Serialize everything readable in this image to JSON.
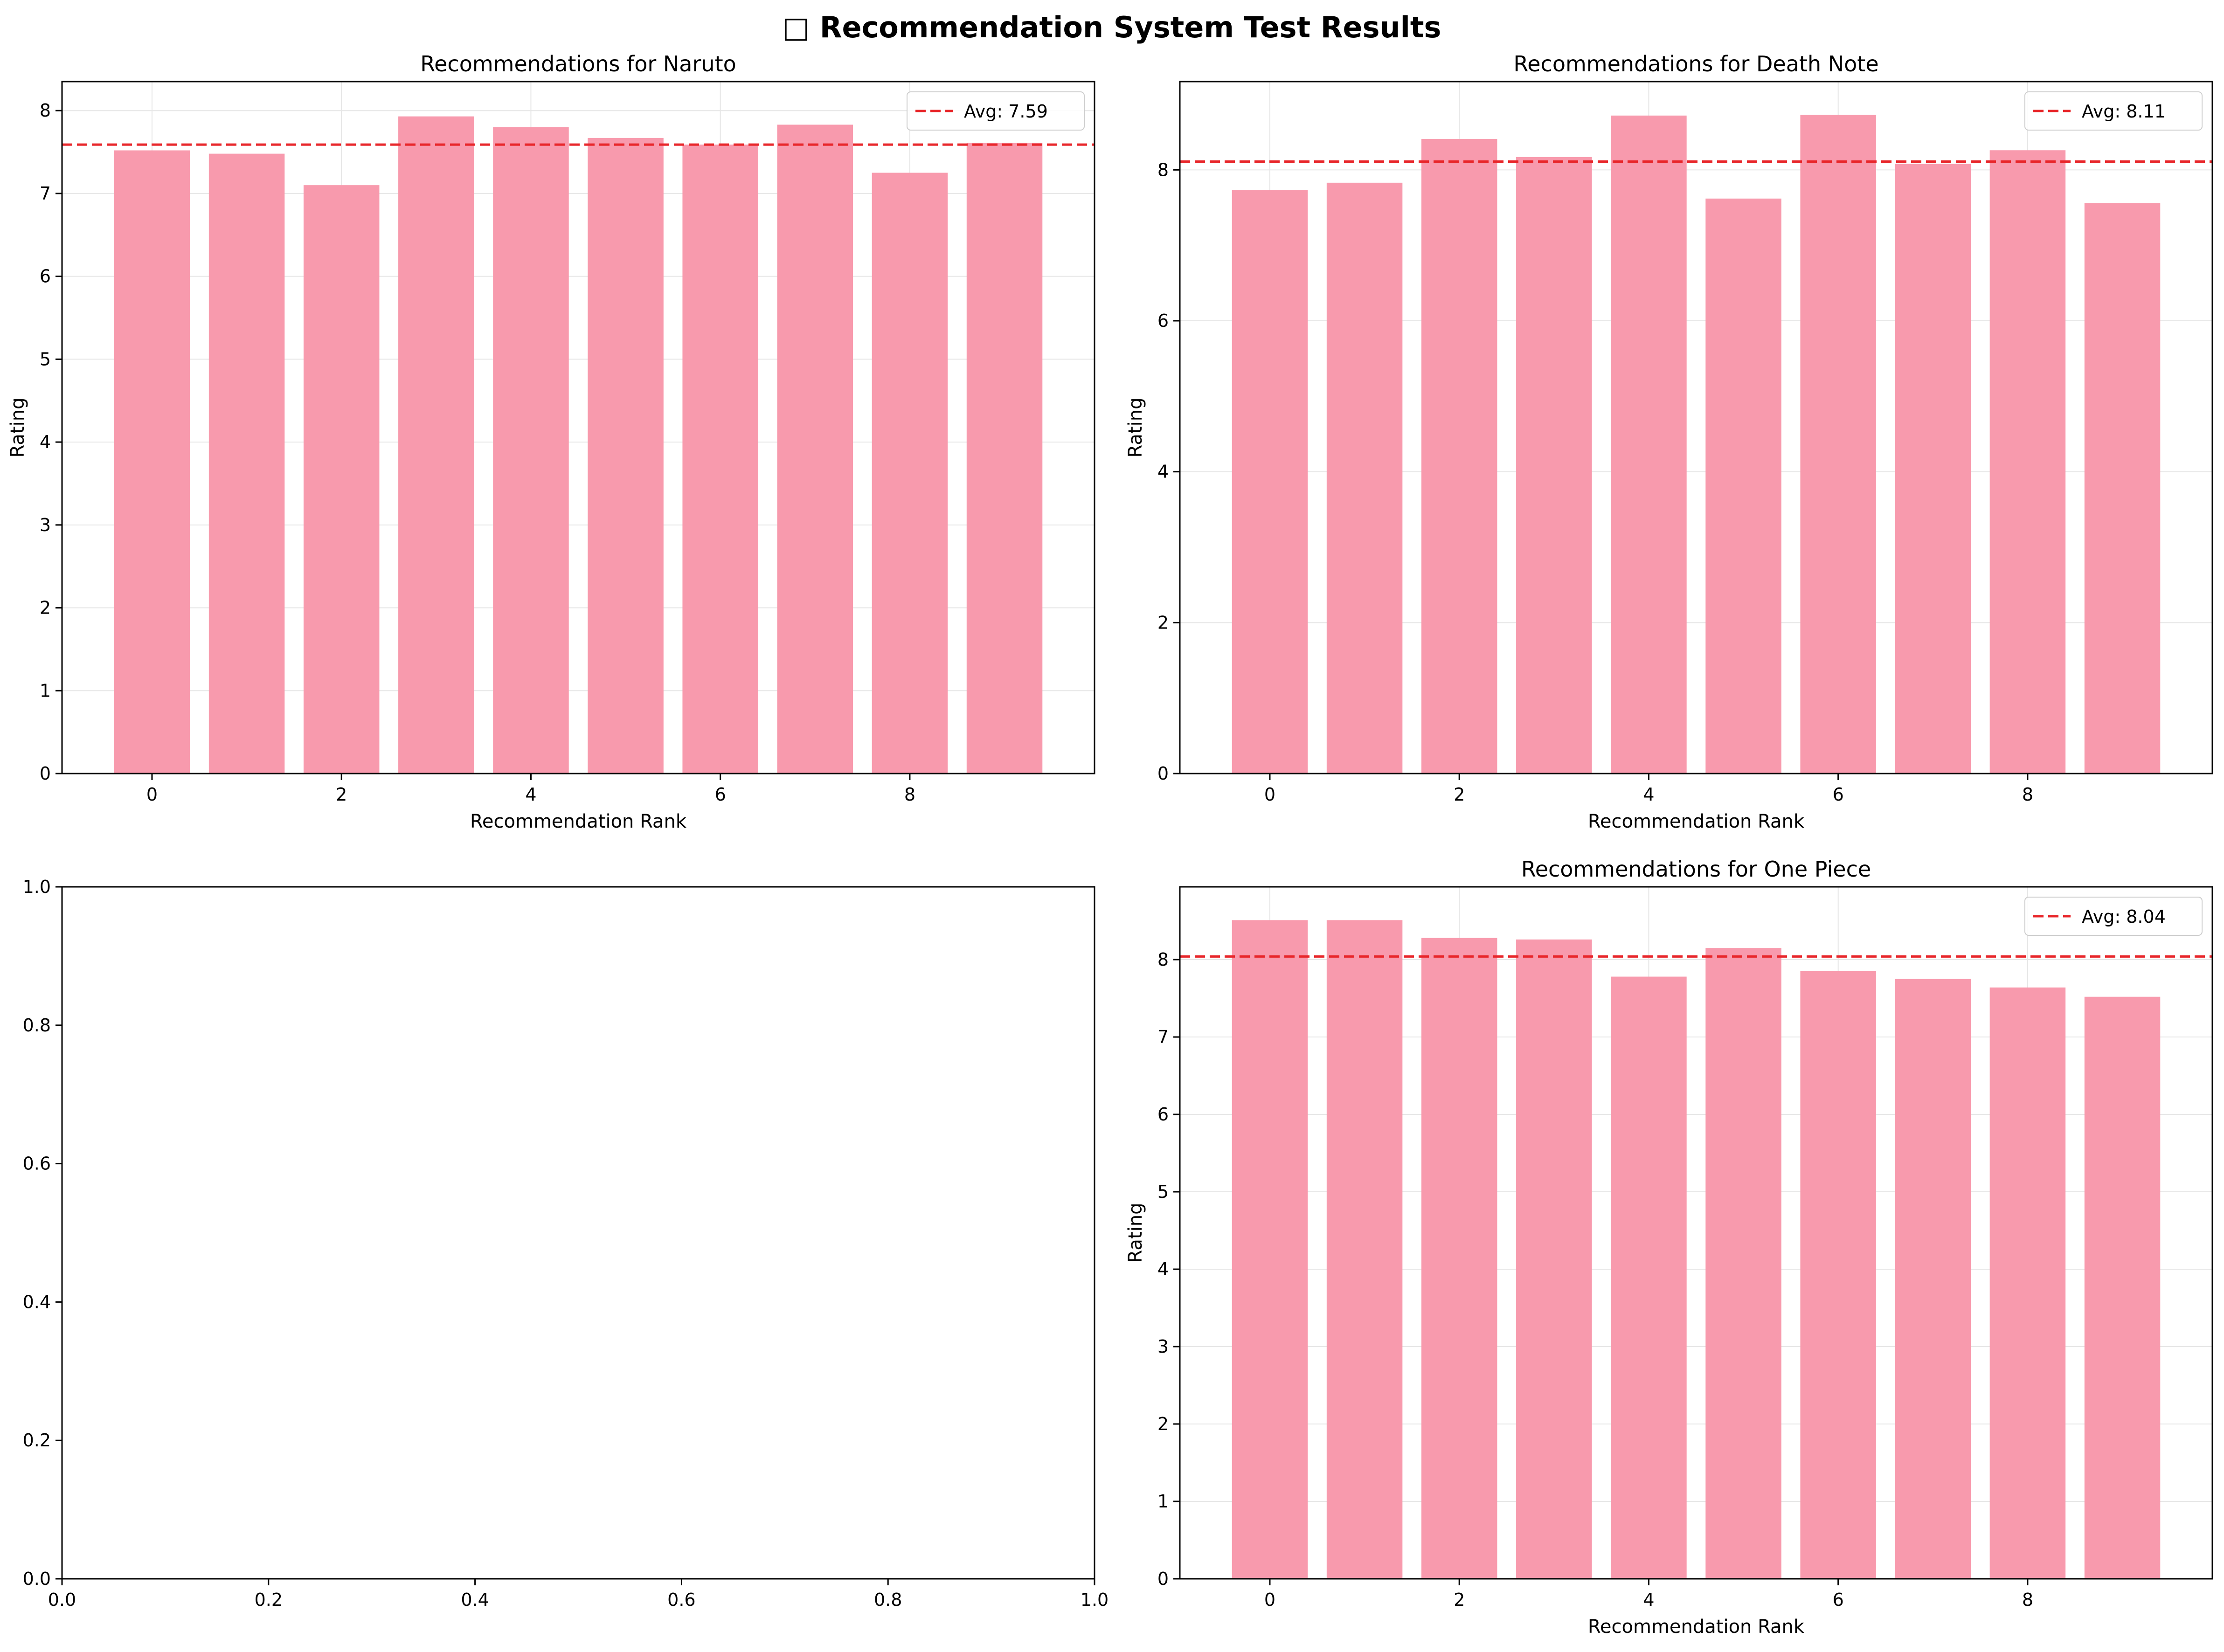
{
  "figure": {
    "title": "□ Recommendation System Test Results"
  },
  "colors": {
    "bar": "#f89aad",
    "avg_line": "#e8262a",
    "grid": "#e6e6e6",
    "axis": "#000000"
  },
  "chart_data": [
    {
      "type": "bar",
      "title": "Recommendations for Naruto",
      "xlabel": "Recommendation Rank",
      "ylabel": "Rating",
      "x": [
        0,
        1,
        2,
        3,
        4,
        5,
        6,
        7,
        8,
        9
      ],
      "values": [
        7.52,
        7.48,
        7.1,
        7.93,
        7.8,
        7.67,
        7.59,
        7.83,
        7.25,
        7.61
      ],
      "xlim": [
        -0.95,
        9.95
      ],
      "ylim": [
        0,
        8.35
      ],
      "xticks": [
        0,
        2,
        4,
        6,
        8
      ],
      "yticks": [
        0,
        1,
        2,
        3,
        4,
        5,
        6,
        7,
        8
      ],
      "grid": true,
      "average": 7.59,
      "legend": {
        "label": "Avg: 7.59",
        "position": "top-right"
      }
    },
    {
      "type": "bar",
      "title": "Recommendations for Death Note",
      "xlabel": "Recommendation Rank",
      "ylabel": "Rating",
      "x": [
        0,
        1,
        2,
        3,
        4,
        5,
        6,
        7,
        8,
        9
      ],
      "values": [
        7.73,
        7.83,
        8.41,
        8.17,
        8.72,
        7.62,
        8.73,
        8.08,
        8.26,
        7.56
      ],
      "xlim": [
        -0.95,
        9.95
      ],
      "ylim": [
        0,
        9.17
      ],
      "xticks": [
        0,
        2,
        4,
        6,
        8
      ],
      "yticks": [
        0,
        2,
        4,
        6,
        8
      ],
      "grid": true,
      "average": 8.11,
      "legend": {
        "label": "Avg: 8.11",
        "position": "top-right"
      }
    },
    {
      "type": "bar",
      "title": "",
      "xlabel": "",
      "ylabel": "",
      "x": [],
      "values": [],
      "xlim": [
        0,
        1
      ],
      "ylim": [
        0,
        1
      ],
      "xticks": [
        0.0,
        0.2,
        0.4,
        0.6,
        0.8,
        1.0
      ],
      "yticks": [
        0.0,
        0.2,
        0.4,
        0.6,
        0.8,
        1.0
      ],
      "tick_format": "fixed1",
      "grid": false
    },
    {
      "type": "bar",
      "title": "Recommendations for One Piece",
      "xlabel": "Recommendation Rank",
      "ylabel": "Rating",
      "x": [
        0,
        1,
        2,
        3,
        4,
        5,
        6,
        7,
        8,
        9
      ],
      "values": [
        8.51,
        8.51,
        8.28,
        8.26,
        7.78,
        8.15,
        7.85,
        7.75,
        7.64,
        7.52
      ],
      "xlim": [
        -0.95,
        9.95
      ],
      "ylim": [
        0,
        8.94
      ],
      "xticks": [
        0,
        2,
        4,
        6,
        8
      ],
      "yticks": [
        0,
        1,
        2,
        3,
        4,
        5,
        6,
        7,
        8
      ],
      "grid": true,
      "average": 8.04,
      "legend": {
        "label": "Avg: 8.04",
        "position": "top-right"
      }
    }
  ]
}
